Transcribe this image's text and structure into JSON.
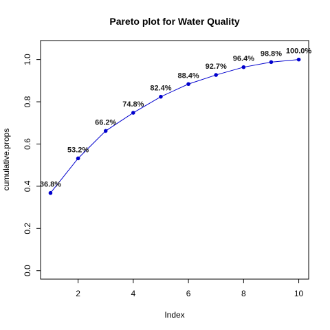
{
  "chart_data": {
    "type": "line",
    "title": "Pareto plot for Water Quality",
    "xlabel": "Index",
    "ylabel": "cumulative.props",
    "x": [
      1,
      2,
      3,
      4,
      5,
      6,
      7,
      8,
      9,
      10
    ],
    "values": [
      0.368,
      0.532,
      0.662,
      0.748,
      0.824,
      0.884,
      0.927,
      0.964,
      0.988,
      1.0
    ],
    "point_labels": [
      "36.8%",
      "53.2%",
      "66.2%",
      "74.8%",
      "82.4%",
      "88.4%",
      "92.7%",
      "96.4%",
      "98.8%",
      "100.0%"
    ],
    "xlim": [
      0.64,
      10.36
    ],
    "ylim": [
      -0.04,
      1.09
    ],
    "x_ticks": [
      2,
      4,
      6,
      8,
      10
    ],
    "x_tick_labels": [
      "2",
      "4",
      "6",
      "8",
      "10"
    ],
    "y_ticks": [
      0.0,
      0.2,
      0.4,
      0.6,
      0.8,
      1.0
    ],
    "y_tick_labels": [
      "0.0",
      "0.2",
      "0.4",
      "0.6",
      "0.8",
      "1.0"
    ],
    "grid": false,
    "series_color": "#0000cd"
  }
}
